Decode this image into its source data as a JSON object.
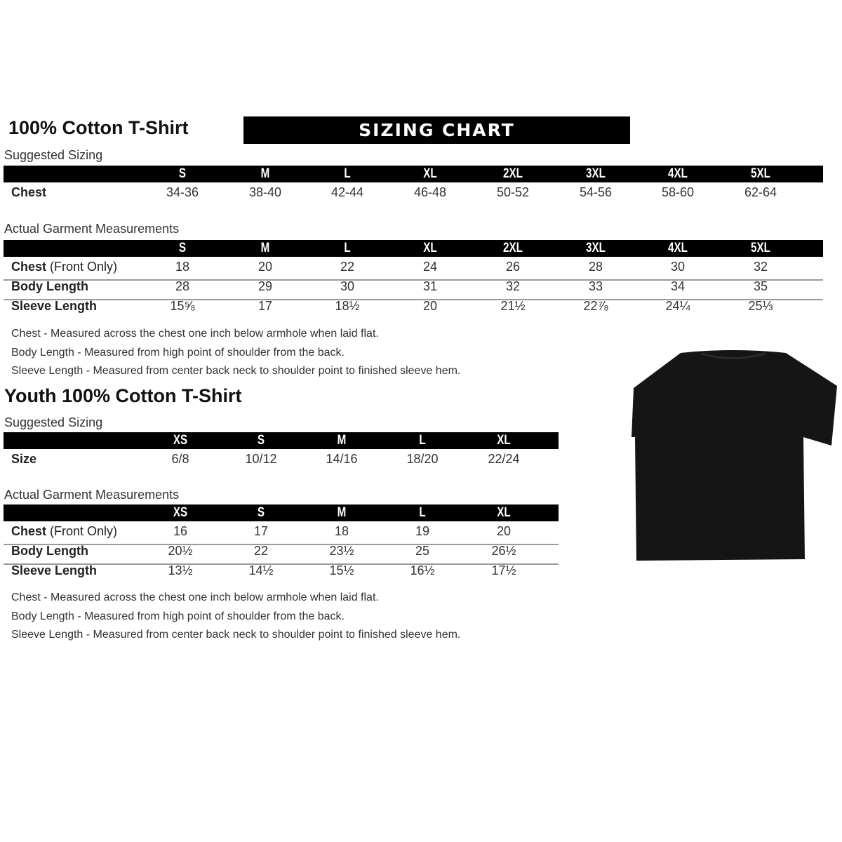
{
  "adult": {
    "title": "100% Cotton T-Shirt",
    "banner": "SIZING CHART",
    "suggested_label": "Suggested Sizing",
    "sizes": [
      "S",
      "M",
      "L",
      "XL",
      "2XL",
      "3XL",
      "4XL",
      "5XL"
    ],
    "suggested_rows": [
      {
        "label": "Chest",
        "values": [
          "34-36",
          "38-40",
          "42-44",
          "46-48",
          "50-52",
          "54-56",
          "58-60",
          "62-64"
        ]
      }
    ],
    "actual_label": "Actual Garment Measurements",
    "actual_rows": [
      {
        "label": "Chest",
        "label_note": "(Front Only)",
        "values": [
          "18",
          "20",
          "22",
          "24",
          "26",
          "28",
          "30",
          "32"
        ]
      },
      {
        "label": "Body Length",
        "values": [
          "28",
          "29",
          "30",
          "31",
          "32",
          "33",
          "34",
          "35"
        ]
      },
      {
        "label": "Sleeve Length",
        "values": [
          "15⅝",
          "17",
          "18½",
          "20",
          "21½",
          "22⅞",
          "24¼",
          "25⅓"
        ]
      }
    ],
    "notes": [
      "Chest - Measured across the chest one inch below armhole when laid flat.",
      "Body Length - Measured from high point of shoulder from the back.",
      "Sleeve Length - Measured from center back neck to shoulder point to finished sleeve hem."
    ]
  },
  "youth": {
    "title": "Youth 100% Cotton T-Shirt",
    "suggested_label": "Suggested Sizing",
    "sizes": [
      "XS",
      "S",
      "M",
      "L",
      "XL"
    ],
    "suggested_rows": [
      {
        "label": "Size",
        "values": [
          "6/8",
          "10/12",
          "14/16",
          "18/20",
          "22/24"
        ]
      }
    ],
    "actual_label": "Actual Garment Measurements",
    "actual_rows": [
      {
        "label": "Chest",
        "label_note": "(Front Only)",
        "values": [
          "16",
          "17",
          "18",
          "19",
          "20"
        ]
      },
      {
        "label": "Body Length",
        "values": [
          "20½",
          "22",
          "23½",
          "25",
          "26½"
        ]
      },
      {
        "label": "Sleeve Length",
        "values": [
          "13½",
          "14½",
          "15½",
          "16½",
          "17½"
        ]
      }
    ],
    "notes": [
      "Chest - Measured across the chest one inch below armhole when laid flat.",
      "Body Length - Measured from high point of shoulder from the back.",
      "Sleeve Length - Measured from center back neck to shoulder point to finished sleeve hem."
    ]
  },
  "image": {
    "tshirt_color": "#151515"
  }
}
